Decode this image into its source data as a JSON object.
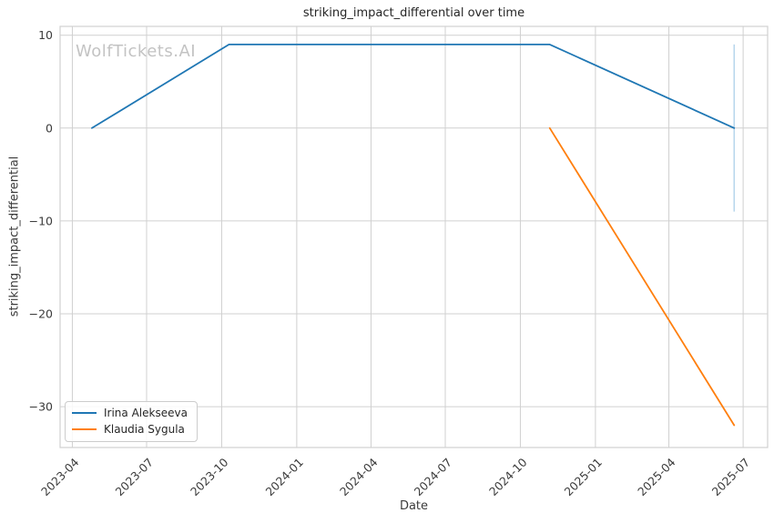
{
  "chart_data": {
    "type": "line",
    "title": "striking_impact_differential over time",
    "xlabel": "Date",
    "ylabel": "striking_impact_differential",
    "watermark": "WolfTickets.AI",
    "grid": true,
    "legend_position": "lower-left",
    "x_domain": [
      "2023-03-17",
      "2025-07-31"
    ],
    "y_domain": [
      -34.4,
      10.95
    ],
    "x_ticks": [
      "2023-04",
      "2023-07",
      "2023-10",
      "2024-01",
      "2024-04",
      "2024-07",
      "2024-10",
      "2025-01",
      "2025-04",
      "2025-07"
    ],
    "y_ticks": [
      10,
      0,
      -10,
      -20,
      -30
    ],
    "series": [
      {
        "name": "Irina Alekseeva",
        "color": "#1f77b4",
        "points": [
          {
            "date": "2023-04-25",
            "value": 0
          },
          {
            "date": "2023-10-10",
            "value": 9
          },
          {
            "date": "2024-11-06",
            "value": 9
          },
          {
            "date": "2025-06-20",
            "value": 0
          }
        ],
        "error_bar": {
          "date": "2025-06-20",
          "value": 0,
          "plus": 9,
          "minus": 9,
          "color": "#b7d6ec"
        }
      },
      {
        "name": "Klaudia Sygula",
        "color": "#ff7f0e",
        "points": [
          {
            "date": "2024-11-06",
            "value": 0
          },
          {
            "date": "2025-06-20",
            "value": -32
          }
        ]
      }
    ],
    "colors": {
      "grid": "#d0d0d0",
      "spine": "#d0d0d0",
      "tick_text": "#3b3b3b",
      "title_text": "#262626",
      "watermark": "#c3c3c3",
      "background": "#ffffff"
    }
  }
}
